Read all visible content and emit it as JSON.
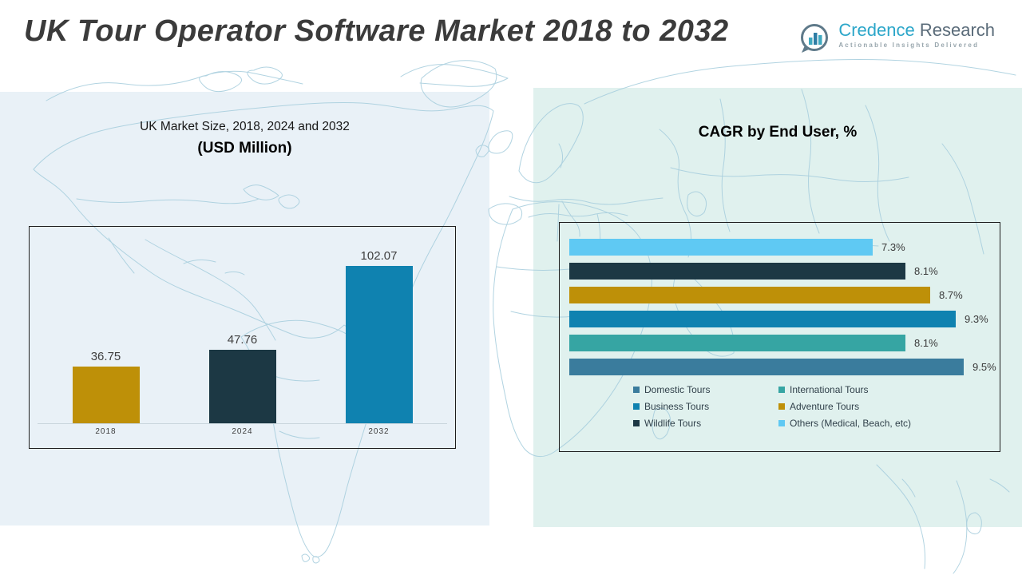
{
  "page": {
    "title": "UK Tour Operator Software Market 2018 to 2032"
  },
  "logo": {
    "brand_primary": "Credence",
    "brand_secondary": "Research",
    "tagline": "Actionable Insights Delivered",
    "icon": "bar-chart-circle-icon"
  },
  "left_section": {
    "title_line1": "UK Market Size, 2018, 2024 and 2032",
    "title_line2": "(USD Million)"
  },
  "right_section": {
    "title": "CAGR by End User, %"
  },
  "colors": {
    "panel_left": "#e9f1f7",
    "panel_right": "#e0f1ee",
    "map_line": "#a9cfde",
    "card_border": "#1d1d1d",
    "axis_line": "#c9d6dd",
    "title_text": "#3b3b3b",
    "brand_teal": "#2ba6c9",
    "brand_slate": "#5a6b79"
  },
  "chart_data": [
    {
      "type": "bar",
      "title": "UK Market Size, 2018, 2024 and 2032 (USD Million)",
      "categories": [
        "2018",
        "2024",
        "2032"
      ],
      "values": [
        36.75,
        47.76,
        102.07
      ],
      "value_labels": [
        "36.75",
        "47.76",
        "102.07"
      ],
      "colors": [
        "#BE9008",
        "#1C3844",
        "#0F82B0"
      ],
      "xlabel": "",
      "ylabel": "USD Million",
      "ylim": [
        0,
        110
      ],
      "grid": false,
      "legend_position": "none"
    },
    {
      "type": "bar-horizontal",
      "title": "CAGR by End User, %",
      "xmax": 9.5,
      "grid": false,
      "legend_position": "bottom",
      "bars_top_to_bottom": [
        {
          "label": "Others (Medical, Beach, etc)",
          "value": 7.3,
          "display": "7.3%",
          "color": "#5FC9F3"
        },
        {
          "label": "Wildlife Tours",
          "value": 8.1,
          "display": "8.1%",
          "color": "#1C3844"
        },
        {
          "label": "Adventure Tours",
          "value": 8.7,
          "display": "8.7%",
          "color": "#BE9008"
        },
        {
          "label": "Business Tours",
          "value": 9.3,
          "display": "9.3%",
          "color": "#0F82B0"
        },
        {
          "label": "International Tours",
          "value": 8.1,
          "display": "8.1%",
          "color": "#36A5A3"
        },
        {
          "label": "Domestic Tours",
          "value": 9.5,
          "display": "9.5%",
          "color": "#3A7C9D"
        }
      ],
      "legend": [
        {
          "label": "Domestic Tours",
          "color": "#3A7C9D"
        },
        {
          "label": "International Tours",
          "color": "#36A5A3"
        },
        {
          "label": "Business Tours",
          "color": "#0F82B0"
        },
        {
          "label": "Adventure Tours",
          "color": "#BE9008"
        },
        {
          "label": "Wildlife Tours",
          "color": "#1C3844"
        },
        {
          "label": "Others (Medical, Beach, etc)",
          "color": "#5FC9F3"
        }
      ]
    }
  ]
}
